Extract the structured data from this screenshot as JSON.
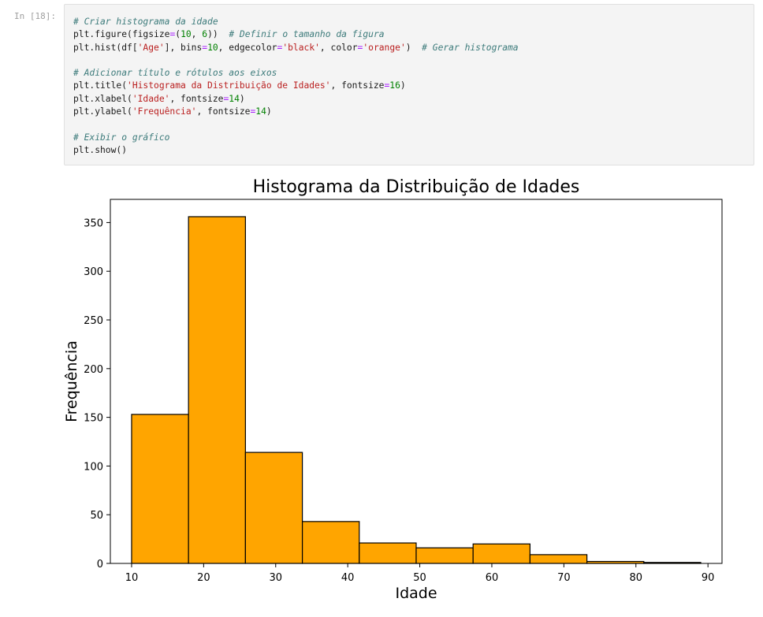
{
  "cell": {
    "prompt": "In [18]:",
    "code_lines": [
      [
        {
          "t": "com",
          "v": "# Criar histograma da idade"
        }
      ],
      [
        {
          "t": "txt",
          "v": "plt.figure(figsize"
        },
        {
          "t": "op",
          "v": "="
        },
        {
          "t": "txt",
          "v": "("
        },
        {
          "t": "num",
          "v": "10"
        },
        {
          "t": "txt",
          "v": ", "
        },
        {
          "t": "num",
          "v": "6"
        },
        {
          "t": "txt",
          "v": "))  "
        },
        {
          "t": "com",
          "v": "# Definir o tamanho da figura"
        }
      ],
      [
        {
          "t": "txt",
          "v": "plt.hist(df["
        },
        {
          "t": "str",
          "v": "'Age'"
        },
        {
          "t": "txt",
          "v": "], bins"
        },
        {
          "t": "op",
          "v": "="
        },
        {
          "t": "num",
          "v": "10"
        },
        {
          "t": "txt",
          "v": ", edgecolor"
        },
        {
          "t": "op",
          "v": "="
        },
        {
          "t": "str",
          "v": "'black'"
        },
        {
          "t": "txt",
          "v": ", color"
        },
        {
          "t": "op",
          "v": "="
        },
        {
          "t": "str",
          "v": "'orange'"
        },
        {
          "t": "txt",
          "v": ")  "
        },
        {
          "t": "com",
          "v": "# Gerar histograma"
        }
      ],
      [],
      [
        {
          "t": "com",
          "v": "# Adicionar título e rótulos aos eixos"
        }
      ],
      [
        {
          "t": "txt",
          "v": "plt.title("
        },
        {
          "t": "str",
          "v": "'Histograma da Distribuição de Idades'"
        },
        {
          "t": "txt",
          "v": ", fontsize"
        },
        {
          "t": "op",
          "v": "="
        },
        {
          "t": "num",
          "v": "16"
        },
        {
          "t": "txt",
          "v": ")"
        }
      ],
      [
        {
          "t": "txt",
          "v": "plt.xlabel("
        },
        {
          "t": "str",
          "v": "'Idade'"
        },
        {
          "t": "txt",
          "v": ", fontsize"
        },
        {
          "t": "op",
          "v": "="
        },
        {
          "t": "num",
          "v": "14"
        },
        {
          "t": "txt",
          "v": ")"
        }
      ],
      [
        {
          "t": "txt",
          "v": "plt.ylabel("
        },
        {
          "t": "str",
          "v": "'Frequência'"
        },
        {
          "t": "txt",
          "v": ", fontsize"
        },
        {
          "t": "op",
          "v": "="
        },
        {
          "t": "num",
          "v": "14"
        },
        {
          "t": "txt",
          "v": ")"
        }
      ],
      [],
      [
        {
          "t": "com",
          "v": "# Exibir o gráfico"
        }
      ],
      [
        {
          "t": "txt",
          "v": "plt.show()"
        }
      ]
    ]
  },
  "chart_data": {
    "type": "bar",
    "title": "Histograma da Distribuição de Idades",
    "xlabel": "Idade",
    "ylabel": "Frequência",
    "bin_edges": [
      10,
      17.9,
      25.8,
      33.7,
      41.6,
      49.5,
      57.4,
      65.3,
      73.2,
      81.1,
      89.0
    ],
    "values": [
      153,
      356,
      114,
      43,
      21,
      16,
      20,
      9,
      2,
      1
    ],
    "xlim": [
      7.05,
      91.95
    ],
    "ylim": [
      0,
      373.8
    ],
    "xticks": [
      10,
      20,
      30,
      40,
      50,
      60,
      70,
      80,
      90
    ],
    "yticks": [
      0,
      50,
      100,
      150,
      200,
      250,
      300,
      350
    ],
    "bar_color": "#ffa500",
    "edge_color": "#000000",
    "grid": false
  }
}
